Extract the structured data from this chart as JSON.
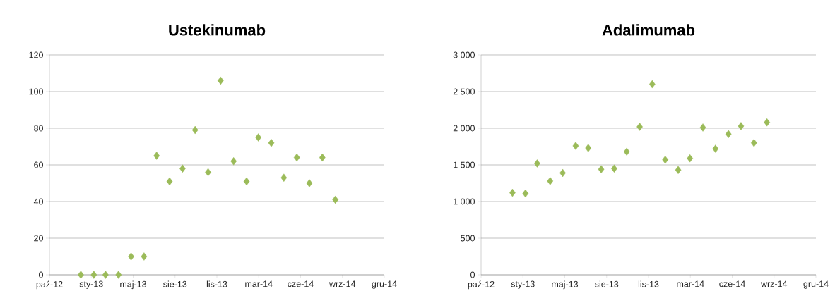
{
  "chart_data": [
    {
      "type": "scatter",
      "title": "Ustekinumab",
      "color": "#9bbb59",
      "marker": "diamond",
      "grid": "y",
      "x": [
        "2013-01-01",
        "2013-02-01",
        "2013-03-01",
        "2013-04-01",
        "2013-05-01",
        "2013-06-01",
        "2013-07-01",
        "2013-08-01",
        "2013-09-01",
        "2013-10-01",
        "2013-11-01",
        "2013-12-01",
        "2014-01-01",
        "2014-02-01",
        "2014-03-01",
        "2014-04-01",
        "2014-05-01",
        "2014-06-01",
        "2014-07-01",
        "2014-08-01",
        "2014-09-01"
      ],
      "values": [
        0,
        0,
        0,
        0,
        10,
        10,
        65,
        51,
        58,
        79,
        56,
        106,
        62,
        51,
        75,
        72,
        53,
        64,
        50,
        64,
        41
      ],
      "xlim": [
        "2012-10-18",
        "2014-12-27"
      ],
      "xticks": [
        {
          "value": "2012-10-18",
          "label": "paź-12"
        },
        {
          "value": "2013-01-26",
          "label": "sty-13"
        },
        {
          "value": "2013-05-06",
          "label": "maj-13"
        },
        {
          "value": "2013-08-14",
          "label": "sie-13"
        },
        {
          "value": "2013-11-22",
          "label": "lis-13"
        },
        {
          "value": "2014-03-02",
          "label": "mar-14"
        },
        {
          "value": "2014-06-10",
          "label": "cze-14"
        },
        {
          "value": "2014-09-18",
          "label": "wrz-14"
        },
        {
          "value": "2014-12-27",
          "label": "gru-14"
        }
      ],
      "ylim": [
        0,
        120
      ],
      "yticks": [
        0,
        20,
        40,
        60,
        80,
        100,
        120
      ]
    },
    {
      "type": "scatter",
      "title": "Adalimumab",
      "color": "#9bbb59",
      "marker": "diamond",
      "grid": "y",
      "x": [
        "2013-01-01",
        "2013-02-01",
        "2013-03-01",
        "2013-04-01",
        "2013-05-01",
        "2013-06-01",
        "2013-07-01",
        "2013-08-01",
        "2013-09-01",
        "2013-10-01",
        "2013-11-01",
        "2013-12-01",
        "2014-01-01",
        "2014-02-01",
        "2014-03-01",
        "2014-04-01",
        "2014-05-01",
        "2014-06-01",
        "2014-07-01",
        "2014-08-01",
        "2014-09-01"
      ],
      "values": [
        1120,
        1110,
        1520,
        1280,
        1390,
        1760,
        1730,
        1440,
        1450,
        1680,
        2020,
        2600,
        1570,
        1430,
        1590,
        2010,
        1720,
        1920,
        2030,
        1800,
        2080
      ],
      "xlim": [
        "2012-10-18",
        "2014-12-27"
      ],
      "xticks": [
        {
          "value": "2012-10-18",
          "label": "paź-12"
        },
        {
          "value": "2013-01-26",
          "label": "sty-13"
        },
        {
          "value": "2013-05-06",
          "label": "maj-13"
        },
        {
          "value": "2013-08-14",
          "label": "sie-13"
        },
        {
          "value": "2013-11-22",
          "label": "lis-13"
        },
        {
          "value": "2014-03-02",
          "label": "mar-14"
        },
        {
          "value": "2014-06-10",
          "label": "cze-14"
        },
        {
          "value": "2014-09-18",
          "label": "wrz-14"
        },
        {
          "value": "2014-12-27",
          "label": "gru-14"
        }
      ],
      "ylim": [
        0,
        3000
      ],
      "yticks": [
        0,
        {
          "value": 500,
          "label": "500"
        },
        {
          "value": 1000,
          "label": "1 000"
        },
        {
          "value": 1500,
          "label": "1 500"
        },
        {
          "value": 2000,
          "label": "2 000"
        },
        {
          "value": 2500,
          "label": "2 500"
        },
        {
          "value": 3000,
          "label": "3 000"
        }
      ]
    }
  ]
}
